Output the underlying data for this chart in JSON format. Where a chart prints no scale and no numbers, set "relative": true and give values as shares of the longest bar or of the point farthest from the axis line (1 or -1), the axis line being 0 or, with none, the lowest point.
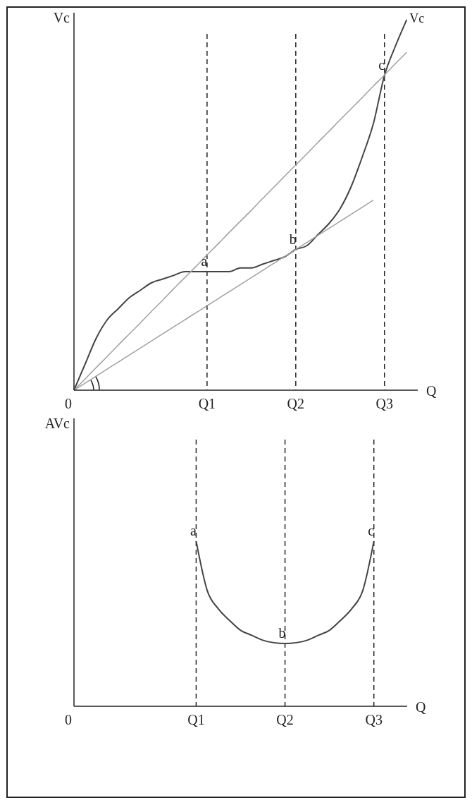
{
  "chart_data": [
    {
      "type": "line",
      "relative": true,
      "ylabel": "Vc",
      "xlabel": "Q",
      "grid": false,
      "categories": [
        "0",
        null,
        null,
        null,
        null,
        null,
        null,
        null,
        null,
        null,
        null,
        null,
        "Q1",
        null,
        null,
        null,
        null,
        null,
        null,
        null,
        "Q2",
        null,
        null,
        null,
        null,
        null,
        null,
        null,
        "Q3",
        null,
        null,
        null
      ],
      "series": [
        {
          "name": "Vc",
          "color": "#444444",
          "values": [
            0,
            0.07,
            0.14,
            0.19,
            0.22,
            0.25,
            0.27,
            0.29,
            0.3,
            0.31,
            0.32,
            0.32,
            0.32,
            0.32,
            0.32,
            0.33,
            0.33,
            0.34,
            0.35,
            0.36,
            0.38,
            0.39,
            0.42,
            0.45,
            0.49,
            0.55,
            0.63,
            0.72,
            0.85,
            0.93,
            1,
            null
          ]
        },
        {
          "color": "#a0a0a0",
          "values": [
            0,
            0.03,
            0.061,
            0.091,
            0.122,
            0.152,
            0.182,
            0.213,
            0.243,
            0.274,
            0.304,
            0.334,
            0.365,
            0.395,
            0.426,
            0.456,
            0.486,
            0.517,
            0.547,
            0.578,
            0.608,
            0.638,
            0.669,
            0.699,
            0.73,
            0.76,
            0.79,
            0.821,
            0.851,
            0.882,
            0.912,
            null
          ]
        },
        {
          "color": "#a0a0a0",
          "values": [
            0,
            0.019,
            0.038,
            0.057,
            0.076,
            0.095,
            0.114,
            0.133,
            0.152,
            0.171,
            0.19,
            0.209,
            0.228,
            0.247,
            0.266,
            0.285,
            0.304,
            0.323,
            0.342,
            0.361,
            0.38,
            0.399,
            0.418,
            0.437,
            0.456,
            0.475,
            0.494,
            0.513,
            null,
            null,
            null,
            null
          ]
        }
      ],
      "ref_lines": [
        {
          "axis": "x",
          "value": "Q1",
          "color": "#222222",
          "line_style": "dashed"
        },
        {
          "axis": "x",
          "value": "Q2",
          "color": "#222222",
          "line_style": "dashed"
        },
        {
          "axis": "x",
          "value": "Q3",
          "color": "#222222",
          "line_style": "dashed"
        }
      ],
      "annotations": [
        {
          "text": "a",
          "x": "Q1",
          "y": 0.32
        },
        {
          "text": "b",
          "x": "Q2",
          "y": 0.38
        },
        {
          "text": "c",
          "x": "Q3",
          "y": 0.85
        }
      ]
    },
    {
      "type": "line",
      "relative": true,
      "ylabel": "AVc",
      "xlabel": "Q",
      "grid": false,
      "categories": [
        "0",
        null,
        null,
        null,
        null,
        null,
        null,
        null,
        null,
        null,
        null,
        "Q1",
        null,
        null,
        null,
        null,
        null,
        null,
        null,
        "Q2",
        null,
        null,
        null,
        null,
        null,
        null,
        null,
        "Q3",
        null,
        null,
        null
      ],
      "series": [
        {
          "color": "#444444",
          "values": [
            null,
            null,
            null,
            null,
            null,
            null,
            null,
            null,
            null,
            null,
            null,
            1,
            0.7,
            0.59,
            0.52,
            0.46,
            0.43,
            0.4,
            0.385,
            0.38,
            0.385,
            0.4,
            0.43,
            0.46,
            0.52,
            0.59,
            0.7,
            1,
            null,
            null,
            null
          ]
        }
      ],
      "ref_lines": [
        {
          "axis": "x",
          "value": "Q1",
          "color": "#222222",
          "line_style": "dashed"
        },
        {
          "axis": "x",
          "value": "Q2",
          "color": "#222222",
          "line_style": "dashed"
        },
        {
          "axis": "x",
          "value": "Q3",
          "color": "#222222",
          "line_style": "dashed"
        }
      ],
      "annotations": [
        {
          "text": "a",
          "x": "Q1",
          "y": 1
        },
        {
          "text": "b",
          "x": "Q2",
          "y": 0.38
        },
        {
          "text": "c",
          "x": "Q3",
          "y": 1
        }
      ]
    }
  ]
}
